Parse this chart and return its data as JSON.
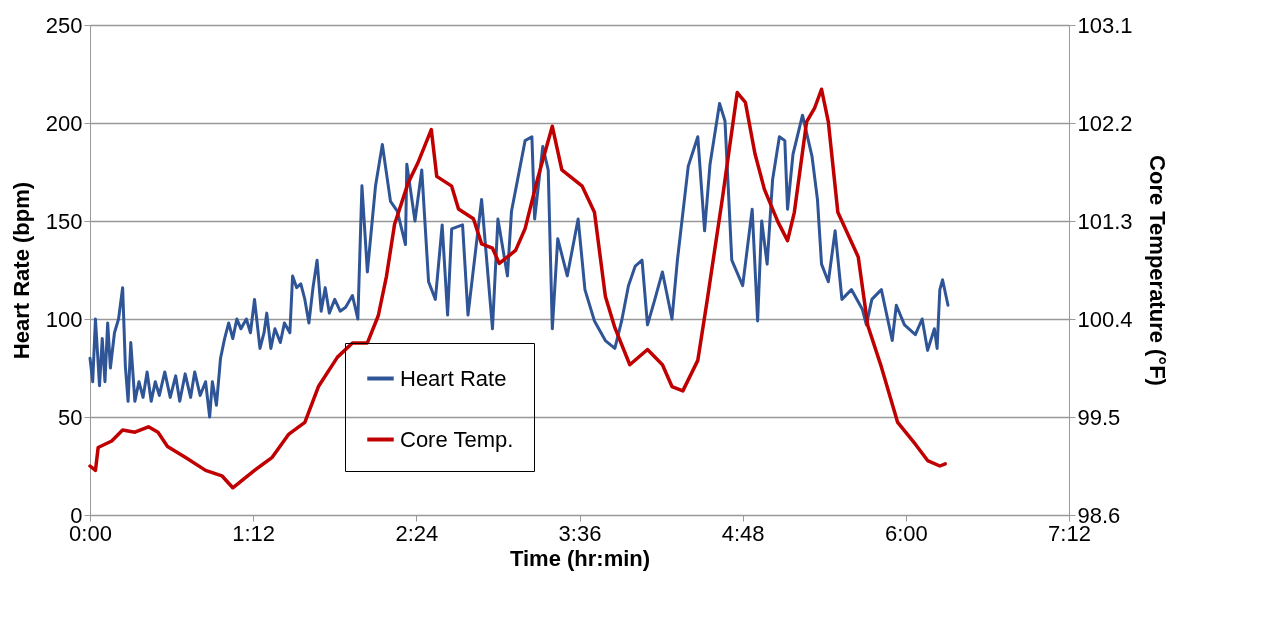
{
  "chart_data": {
    "type": "line",
    "xlabel": "Time (hr:min)",
    "ylabel": "Heart Rate (bpm)",
    "y2label": "Core Temperature (°F)",
    "xlim": [
      0,
      7.2
    ],
    "xticks": [
      {
        "value": 0,
        "label": "0:00"
      },
      {
        "value": 1.2,
        "label": "1:12"
      },
      {
        "value": 2.4,
        "label": "2:24"
      },
      {
        "value": 3.6,
        "label": "3:36"
      },
      {
        "value": 4.8,
        "label": "4:48"
      },
      {
        "value": 6.0,
        "label": "6:00"
      },
      {
        "value": 7.2,
        "label": "7:12"
      }
    ],
    "ylim": [
      0,
      250
    ],
    "yticks": [
      0,
      50,
      100,
      150,
      200,
      250
    ],
    "y2lim": [
      98.6,
      103.1
    ],
    "y2ticks": [
      98.6,
      99.5,
      100.4,
      101.3,
      102.2,
      103.1
    ],
    "grid": "y",
    "legend": "bottom",
    "line_style": "solid",
    "marker": "none",
    "series": [
      {
        "name": "Heart Rate",
        "color": "#2f5597",
        "x": [
          0.0,
          0.02,
          0.04,
          0.07,
          0.09,
          0.11,
          0.13,
          0.15,
          0.18,
          0.21,
          0.24,
          0.26,
          0.28,
          0.3,
          0.33,
          0.36,
          0.39,
          0.42,
          0.45,
          0.48,
          0.51,
          0.55,
          0.59,
          0.63,
          0.66,
          0.7,
          0.74,
          0.77,
          0.81,
          0.85,
          0.88,
          0.9,
          0.93,
          0.96,
          0.99,
          1.02,
          1.05,
          1.08,
          1.11,
          1.15,
          1.18,
          1.21,
          1.25,
          1.28,
          1.3,
          1.33,
          1.36,
          1.4,
          1.43,
          1.47,
          1.49,
          1.52,
          1.55,
          1.58,
          1.61,
          1.64,
          1.67,
          1.7,
          1.73,
          1.76,
          1.8,
          1.84,
          1.88,
          1.93,
          1.97,
          2.0,
          2.04,
          2.1,
          2.15,
          2.21,
          2.26,
          2.32,
          2.33,
          2.39,
          2.44,
          2.49,
          2.54,
          2.59,
          2.63,
          2.66,
          2.74,
          2.78,
          2.88,
          2.96,
          3.0,
          3.07,
          3.1,
          3.2,
          3.25,
          3.27,
          3.33,
          3.37,
          3.4,
          3.44,
          3.51,
          3.59,
          3.64,
          3.71,
          3.79,
          3.86,
          3.91,
          3.96,
          4.01,
          4.06,
          4.1,
          4.15,
          4.21,
          4.28,
          4.32,
          4.4,
          4.47,
          4.52,
          4.56,
          4.63,
          4.67,
          4.72,
          4.8,
          4.87,
          4.91,
          4.94,
          4.98,
          5.02,
          5.07,
          5.11,
          5.13,
          5.17,
          5.24,
          5.31,
          5.35,
          5.38,
          5.43,
          5.48,
          5.53,
          5.6,
          5.68,
          5.71,
          5.75,
          5.82,
          5.9,
          5.93,
          5.99,
          6.07,
          6.12,
          6.16,
          6.21,
          6.23,
          6.25,
          6.27,
          6.31
        ],
        "values": [
          80,
          68,
          100,
          66,
          90,
          68,
          98,
          75,
          93,
          100,
          116,
          76,
          58,
          88,
          58,
          68,
          60,
          73,
          58,
          68,
          61,
          73,
          60,
          71,
          58,
          72,
          60,
          73,
          61,
          68,
          50,
          68,
          56,
          80,
          90,
          98,
          90,
          100,
          95,
          100,
          93,
          110,
          85,
          93,
          103,
          85,
          95,
          88,
          98,
          93,
          122,
          116,
          118,
          110,
          98,
          116,
          130,
          104,
          116,
          103,
          110,
          104,
          106,
          112,
          100,
          168,
          124,
          168,
          189,
          160,
          155,
          138,
          179,
          150,
          176,
          119,
          110,
          148,
          102,
          146,
          148,
          102,
          161,
          95,
          151,
          122,
          155,
          191,
          193,
          151,
          188,
          176,
          95,
          141,
          122,
          151,
          115,
          99,
          89,
          85,
          99,
          117,
          127,
          130,
          97,
          109,
          124,
          100,
          130,
          178,
          193,
          145,
          179,
          210,
          201,
          130,
          117,
          156,
          99,
          150,
          128,
          171,
          193,
          191,
          156,
          184,
          204,
          183,
          161,
          128,
          119,
          145,
          110,
          115,
          105,
          97,
          110,
          115,
          89,
          107,
          97,
          92,
          100,
          84,
          95,
          85,
          115,
          120,
          107
        ]
      },
      {
        "name": "Core Temp.",
        "color": "#c00000",
        "axis": "y2",
        "x": [
          0.0,
          0.04,
          0.06,
          0.16,
          0.24,
          0.33,
          0.43,
          0.5,
          0.57,
          0.7,
          0.85,
          0.97,
          1.05,
          1.21,
          1.34,
          1.46,
          1.58,
          1.68,
          1.82,
          1.93,
          2.04,
          2.12,
          2.18,
          2.24,
          2.34,
          2.41,
          2.51,
          2.55,
          2.66,
          2.71,
          2.82,
          2.88,
          2.96,
          3.01,
          3.13,
          3.2,
          3.29,
          3.4,
          3.47,
          3.62,
          3.71,
          3.79,
          3.86,
          3.97,
          4.1,
          4.21,
          4.28,
          4.36,
          4.47,
          4.54,
          4.65,
          4.76,
          4.82,
          4.89,
          4.96,
          5.06,
          5.13,
          5.18,
          5.27,
          5.33,
          5.38,
          5.43,
          5.5,
          5.65,
          5.72,
          5.82,
          5.94,
          6.07,
          6.16,
          6.25,
          6.29
        ],
        "values": [
          99.05,
          99.01,
          99.22,
          99.28,
          99.38,
          99.36,
          99.41,
          99.36,
          99.23,
          99.13,
          99.01,
          98.96,
          98.85,
          99.01,
          99.13,
          99.34,
          99.45,
          99.78,
          100.05,
          100.18,
          100.18,
          100.43,
          100.79,
          101.27,
          101.65,
          101.83,
          102.14,
          101.71,
          101.62,
          101.41,
          101.32,
          101.09,
          101.05,
          100.91,
          101.03,
          101.23,
          101.68,
          102.17,
          101.77,
          101.62,
          101.38,
          100.61,
          100.32,
          99.98,
          100.12,
          99.98,
          99.78,
          99.74,
          100.02,
          100.58,
          101.5,
          102.48,
          102.39,
          101.92,
          101.59,
          101.29,
          101.12,
          101.38,
          102.21,
          102.34,
          102.51,
          102.21,
          101.38,
          100.97,
          100.34,
          99.96,
          99.45,
          99.25,
          99.1,
          99.05,
          99.07
        ]
      }
    ]
  }
}
